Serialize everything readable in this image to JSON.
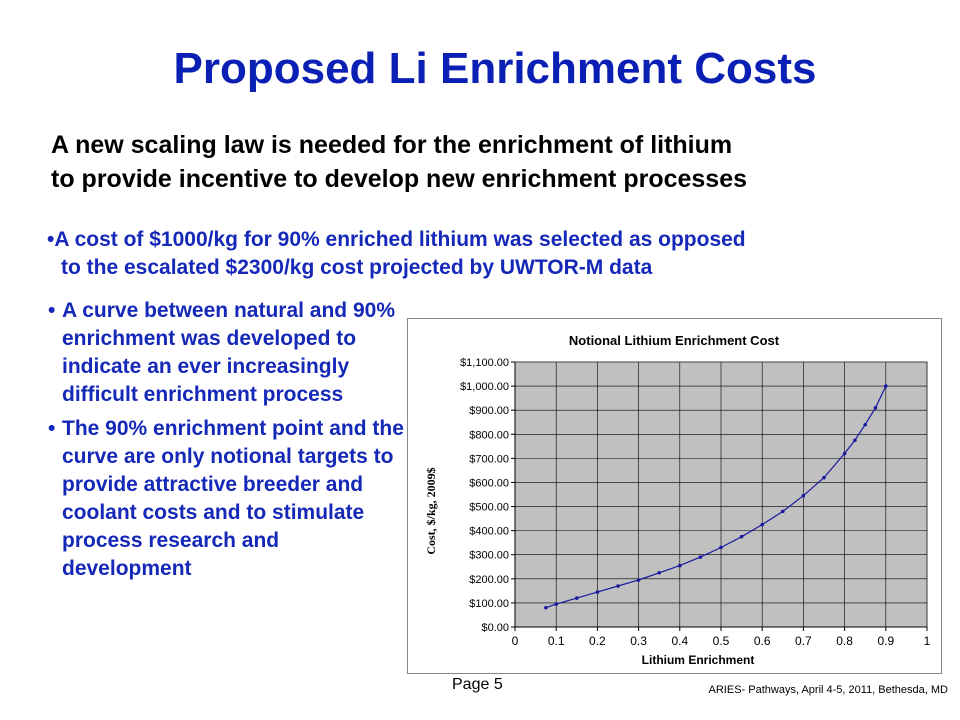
{
  "slide": {
    "title": "Proposed Li Enrichment Costs",
    "subtitle_lines": [
      "A new scaling law is needed for the enrichment of lithium",
      "to provide incentive to develop new enrichment processes"
    ],
    "top_bullet_lines": [
      "A cost of $1000/kg for 90% enriched lithium was selected as opposed",
      "to the escalated $2300/kg cost projected by UWTOR-M data"
    ],
    "left_bullets": [
      "A curve between natural and 90% enrichment was developed to indicate an ever increasingly difficult enrichment process",
      "The 90% enrichment point and the curve are only notional targets to provide attractive breeder and coolant costs and to stimulate process research and development"
    ],
    "bullet_symbol": "•",
    "footer_page": "Page 5",
    "footer_right": "ARIES- Pathways, April 4-5, 2011, Bethesda, MD",
    "colors": {
      "title": "#0a1fb3",
      "bullet_text": "#1528b8",
      "plot_bg": "#c0c0c0",
      "series": "#1a1aa0"
    }
  },
  "chart_data": {
    "type": "line",
    "title": "Notional Lithium Enrichment Cost",
    "xlabel": "Lithium Enrichment",
    "ylabel": "Cost, $/kg, 2009$",
    "xlim": [
      0,
      1
    ],
    "ylim": [
      0,
      1100
    ],
    "x_ticks": [
      "0",
      "0.1",
      "0.2",
      "0.3",
      "0.4",
      "0.5",
      "0.6",
      "0.7",
      "0.8",
      "0.9",
      "1"
    ],
    "y_ticks": [
      "$0.00",
      "$100.00",
      "$200.00",
      "$300.00",
      "$400.00",
      "$500.00",
      "$600.00",
      "$700.00",
      "$800.00",
      "$900.00",
      "$1,000.00",
      "$1,100.00"
    ],
    "grid": true,
    "legend": "none",
    "series": [
      {
        "x": [
          0.075,
          0.1,
          0.15,
          0.2,
          0.25,
          0.3,
          0.35,
          0.4,
          0.45,
          0.5,
          0.55,
          0.6,
          0.65,
          0.7,
          0.75,
          0.8,
          0.825,
          0.85,
          0.875,
          0.9
        ],
        "y": [
          80,
          95,
          120,
          145,
          170,
          195,
          225,
          255,
          290,
          330,
          375,
          425,
          480,
          545,
          620,
          720,
          775,
          840,
          910,
          1000
        ]
      }
    ]
  }
}
